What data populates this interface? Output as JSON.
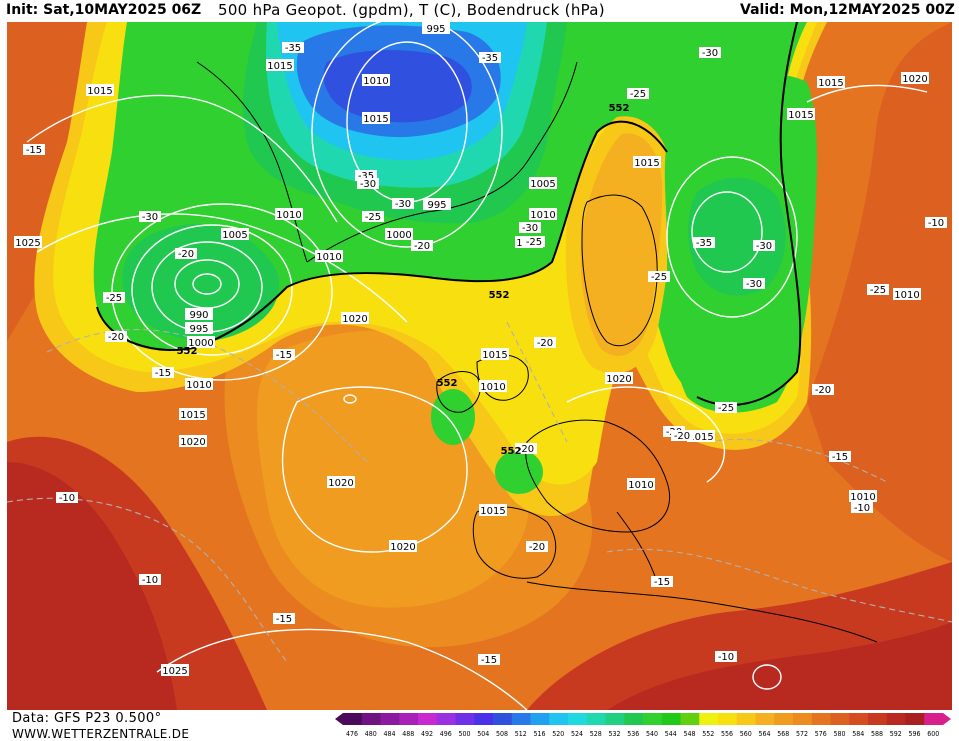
{
  "header": {
    "init": "Init: Sat,10MAY2025 06Z",
    "title": "500 hPa Geopot. (gpdm), T (C), Bodendruck (hPa)",
    "valid": "Valid: Mon,12MAY2025 00Z"
  },
  "footer": {
    "data_source": "Data: GFS P23 0.500°",
    "website": "WWW.WETTERZENTRALE.DE"
  },
  "colorbar": {
    "labels": [
      "476",
      "480",
      "484",
      "488",
      "492",
      "496",
      "500",
      "504",
      "508",
      "512",
      "516",
      "520",
      "524",
      "528",
      "532",
      "536",
      "540",
      "544",
      "548",
      "552",
      "556",
      "560",
      "564",
      "568",
      "572",
      "576",
      "580",
      "584",
      "588",
      "592",
      "596",
      "600"
    ],
    "colors": [
      "#4b0a5a",
      "#6e1480",
      "#8a1aa0",
      "#a820b8",
      "#c828d0",
      "#9a30e0",
      "#7030e8",
      "#4a30e8",
      "#3050e0",
      "#2878e8",
      "#20a0ee",
      "#20c4f0",
      "#20d8e0",
      "#20d8b0",
      "#20d080",
      "#20c850",
      "#30d030",
      "#20c818",
      "#60d010",
      "#f0f010",
      "#f8e010",
      "#f8c818",
      "#f4b020",
      "#f09c20",
      "#ec8c20",
      "#e47420",
      "#dc6020",
      "#d44c20",
      "#c83a20",
      "#b82a20",
      "#a82020",
      "#d8208c"
    ]
  },
  "isobar_labels": [
    "1015",
    "1015",
    "1010",
    "1015",
    "1005",
    "1010",
    "1010",
    "1000",
    "1015",
    "1020",
    "1025",
    "1010",
    "1015",
    "995",
    "1010",
    "1000",
    "995",
    "990",
    "1005",
    "1020",
    "1015",
    "1010",
    "1020",
    "1015",
    "1020",
    "1020",
    "1025",
    "1010",
    "1015",
    "1010",
    "1010",
    "1020",
    "995",
    "1015",
    "1015",
    "1015"
  ],
  "temp_labels": [
    "-35",
    "-35",
    "-30",
    "-25",
    "-15",
    "-30",
    "-20",
    "-30",
    "-25",
    "-25",
    "-20",
    "-15",
    "-35",
    "-30",
    "-30",
    "-25",
    "-20",
    "-25",
    "-20",
    "-15",
    "-10",
    "-10",
    "-15",
    "-15",
    "-20",
    "-15",
    "-10",
    "-20",
    "-30",
    "-35",
    "-30",
    "-20",
    "-15",
    "-10",
    "-25",
    "-20",
    "-20",
    "-25",
    "-10"
  ],
  "geopot_labels": [
    "552",
    "552",
    "552",
    "552",
    "552"
  ]
}
